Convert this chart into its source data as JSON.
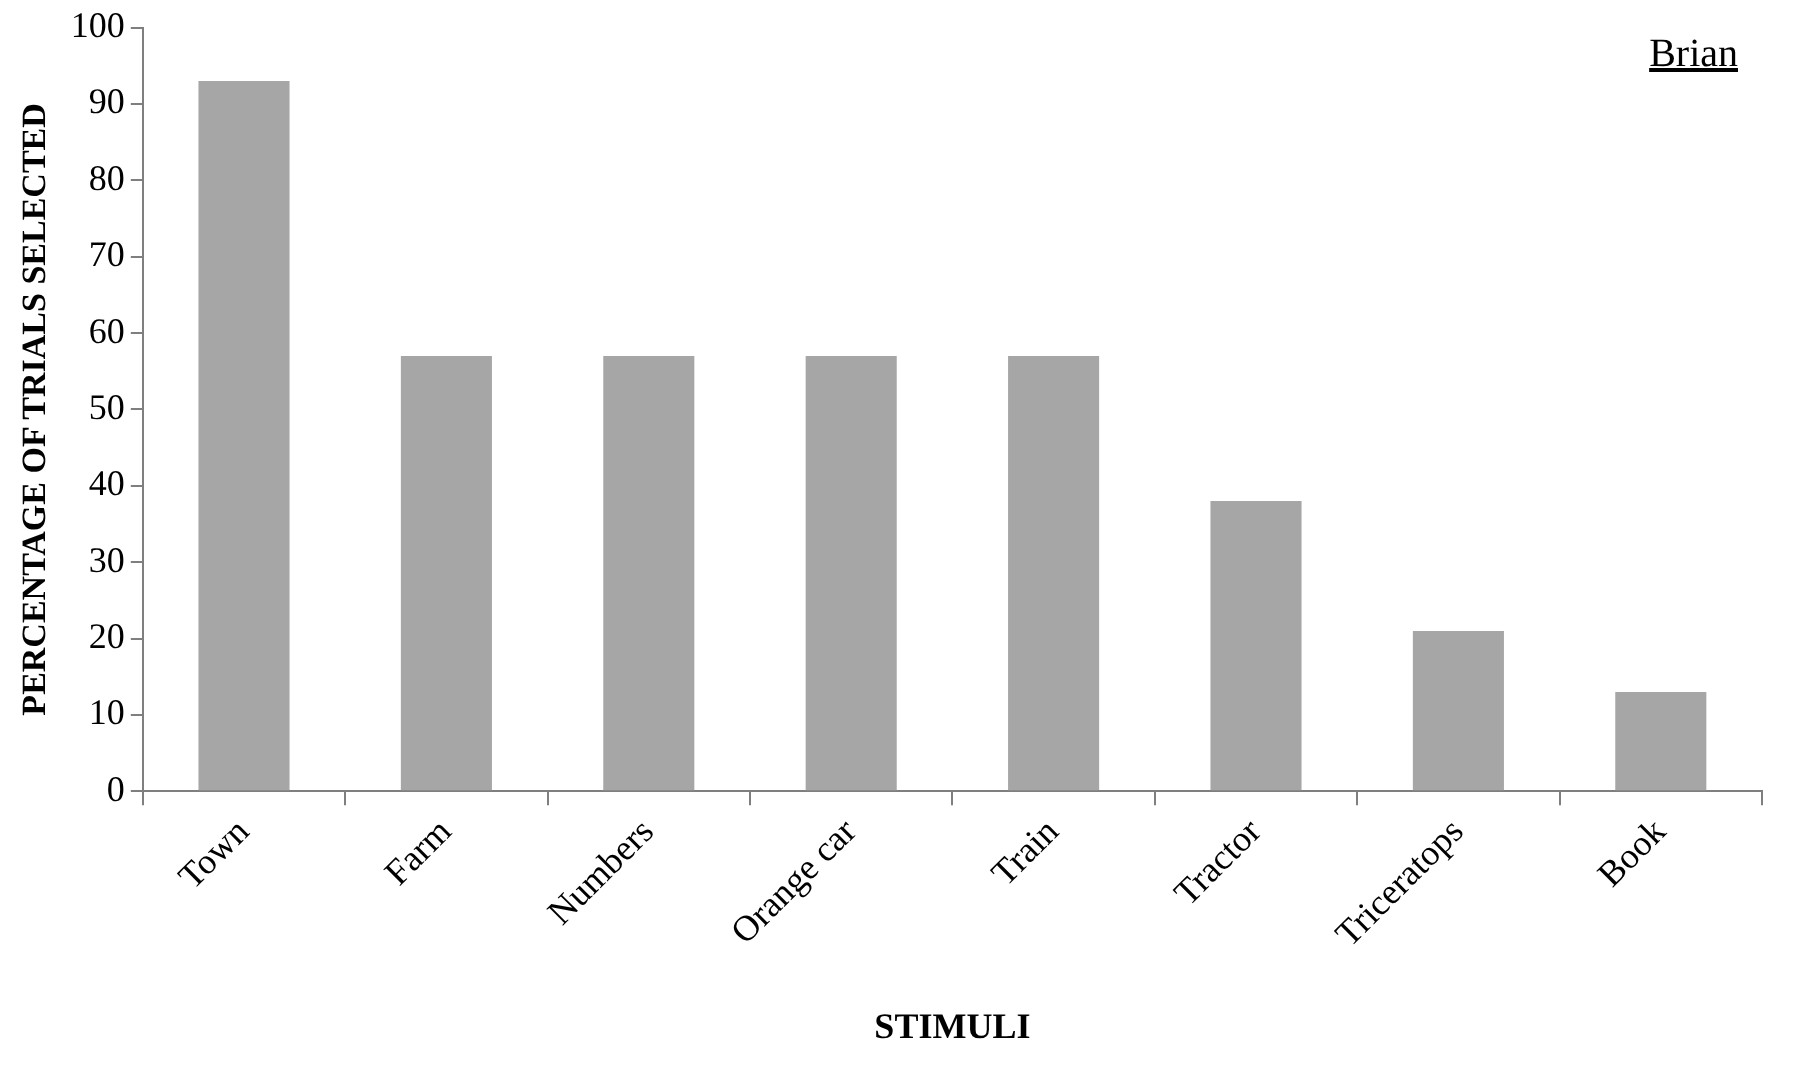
{
  "chart_data": {
    "type": "bar",
    "xlabel": "STIMULI",
    "ylabel": "PERCENTAGE OF TRIALS SELECTED",
    "categories": [
      "Town",
      "Farm",
      "Numbers",
      "Orange car",
      "Train",
      "Tractor",
      "Triceratops",
      "Book"
    ],
    "values": [
      93,
      57,
      57,
      57,
      57,
      38,
      21,
      13
    ],
    "color": "#a6a6a6",
    "ylim": [
      0,
      100
    ],
    "yticks": [
      0,
      10,
      20,
      30,
      40,
      50,
      60,
      70,
      80,
      90,
      100
    ],
    "grid": false,
    "legend": false,
    "annotations": [
      "Brian"
    ]
  }
}
